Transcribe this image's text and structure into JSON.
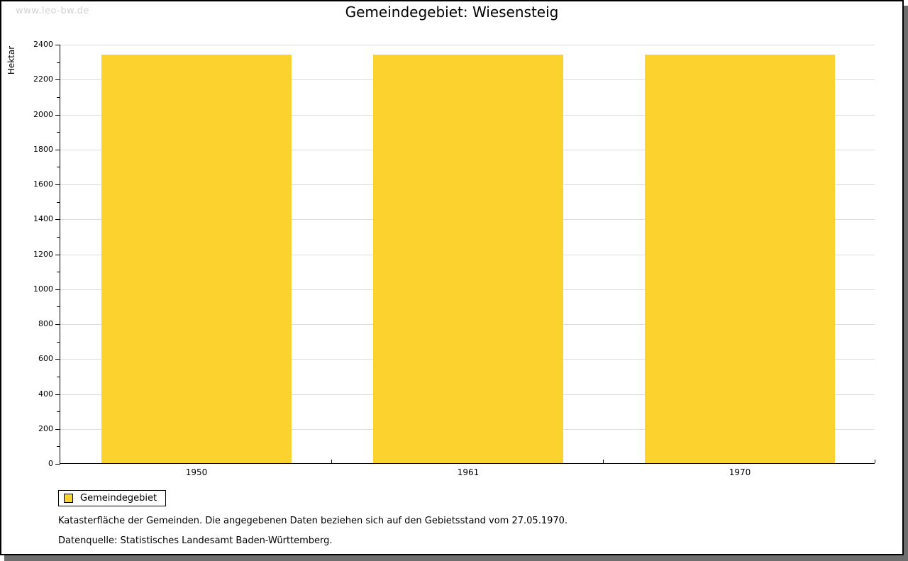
{
  "watermark": "www.leo-bw.de",
  "title": "Gemeindegebiet: Wiesensteig",
  "legend": {
    "label": "Gemeindegebiet",
    "swatch_color": "#fcd32e"
  },
  "notes": [
    "Katasterfläche der Gemeinden. Die angegebenen Daten beziehen sich auf den Gebietsstand vom 27.05.1970.",
    "Datenquelle: Statistisches Landesamt Baden-Württemberg."
  ],
  "colors": {
    "bar": "#fcd32e",
    "gridline": "#dcdcdc",
    "axis": "#000000",
    "watermark": "#d2d2d2",
    "shadow": "#6e6e6e"
  },
  "chart_data": {
    "type": "bar",
    "title": "Gemeindegebiet: Wiesensteig",
    "categories": [
      "1950",
      "1961",
      "1970"
    ],
    "series": [
      {
        "name": "Gemeindegebiet",
        "values": [
          2340,
          2340,
          2340
        ]
      }
    ],
    "xlabel": "",
    "ylabel": "Hektar",
    "ylim": [
      0,
      2400
    ],
    "y_major_step": 200,
    "y_minor_step": 100,
    "grid": true,
    "legend_position": "bottom-left",
    "bar_color": "#fcd32e"
  }
}
